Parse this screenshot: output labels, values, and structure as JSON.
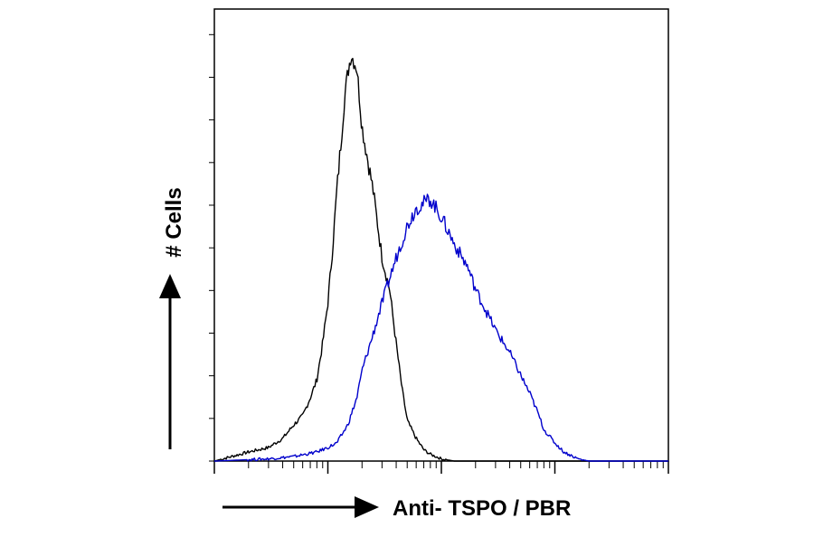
{
  "chart_data": {
    "type": "line",
    "title": "",
    "xlabel": "Anti- TSPO / PBR",
    "ylabel": "# Cells",
    "x_scale": "log",
    "xlim": [
      1,
      10000
    ],
    "ylim": [
      0,
      100
    ],
    "grid": false,
    "legend": "none",
    "series": [
      {
        "color": "#000000",
        "x": [
          1,
          2,
          3,
          4,
          5,
          6,
          7,
          8,
          9,
          10,
          11,
          12,
          13,
          14,
          15,
          16,
          18,
          20,
          25,
          30,
          35,
          40,
          45,
          50,
          60,
          70,
          80,
          100,
          130,
          170,
          220,
          300,
          500,
          1000,
          10000
        ],
        "y": [
          0,
          2,
          3,
          5,
          8,
          10,
          14,
          18,
          26,
          35,
          47,
          60,
          70,
          80,
          86,
          90,
          87,
          74,
          60,
          45,
          38,
          26,
          16,
          9,
          5,
          2.5,
          1.5,
          0.5,
          0,
          0,
          0,
          0,
          0,
          0,
          0
        ]
      },
      {
        "color": "#0000cc",
        "x": [
          1,
          3,
          5,
          8,
          10,
          12,
          15,
          18,
          20,
          25,
          30,
          40,
          50,
          60,
          80,
          100,
          130,
          170,
          200,
          250,
          300,
          400,
          500,
          600,
          700,
          800,
          1000,
          1200,
          1600,
          2000,
          10000
        ],
        "y": [
          0,
          0.5,
          1,
          2,
          3,
          4,
          8,
          14,
          20,
          28,
          35,
          45,
          52,
          56,
          58,
          54,
          48,
          43,
          38,
          33,
          29,
          24,
          19,
          15,
          11,
          7,
          4,
          2,
          0.5,
          0,
          0
        ]
      }
    ]
  }
}
